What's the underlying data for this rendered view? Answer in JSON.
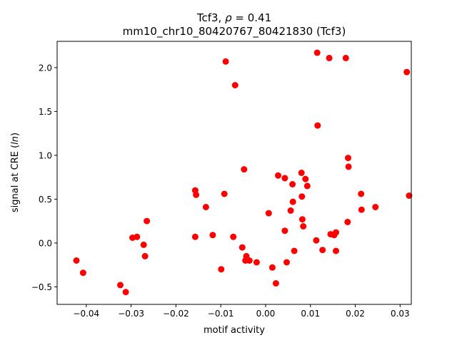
{
  "chart_data": {
    "type": "scatter",
    "title_line1_prefix": "Tcf3, ",
    "title_line1_rho": "ρ",
    "title_line1_suffix": " = 0.41",
    "title_line2": "mm10_chr10_80420767_80421830 (Tcf3)",
    "xlabel": "motif activity",
    "ylabel_prefix": "signal at CRE (",
    "ylabel_italic": "ln",
    "ylabel_suffix": ")",
    "xlim": [
      -0.0465,
      0.0325
    ],
    "ylim": [
      -0.7,
      2.3
    ],
    "x_ticks": [
      -0.04,
      -0.03,
      -0.02,
      -0.01,
      0.0,
      0.01,
      0.02,
      0.03
    ],
    "x_tick_labels": [
      "−0.04",
      "−0.03",
      "−0.02",
      "−0.01",
      "0.00",
      "0.01",
      "0.02",
      "0.03"
    ],
    "y_ticks": [
      -0.5,
      0.0,
      0.5,
      1.0,
      1.5,
      2.0
    ],
    "y_tick_labels": [
      "−0.5",
      "0.0",
      "0.5",
      "1.0",
      "1.5",
      "2.0"
    ],
    "grid": false,
    "marker_color": "#ff0000",
    "points": [
      {
        "x": -0.0422,
        "y": -0.2
      },
      {
        "x": -0.0407,
        "y": -0.34
      },
      {
        "x": -0.0324,
        "y": -0.48
      },
      {
        "x": -0.0312,
        "y": -0.56
      },
      {
        "x": -0.0297,
        "y": 0.06
      },
      {
        "x": -0.0287,
        "y": 0.07
      },
      {
        "x": -0.0272,
        "y": -0.02
      },
      {
        "x": -0.0269,
        "y": -0.15
      },
      {
        "x": -0.0265,
        "y": 0.25
      },
      {
        "x": -0.0157,
        "y": 0.6
      },
      {
        "x": -0.0155,
        "y": 0.55
      },
      {
        "x": -0.0157,
        "y": 0.07
      },
      {
        "x": -0.0133,
        "y": 0.41
      },
      {
        "x": -0.0118,
        "y": 0.09
      },
      {
        "x": -0.0099,
        "y": -0.3
      },
      {
        "x": -0.0092,
        "y": 0.56
      },
      {
        "x": -0.0089,
        "y": 2.07
      },
      {
        "x": -0.0068,
        "y": 1.8
      },
      {
        "x": -0.0072,
        "y": 0.07
      },
      {
        "x": -0.0052,
        "y": -0.05
      },
      {
        "x": -0.0048,
        "y": 0.84
      },
      {
        "x": -0.0045,
        "y": -0.2
      },
      {
        "x": -0.0043,
        "y": -0.15
      },
      {
        "x": -0.0036,
        "y": -0.2
      },
      {
        "x": -0.002,
        "y": -0.22
      },
      {
        "x": 0.0007,
        "y": 0.34
      },
      {
        "x": 0.0015,
        "y": -0.28
      },
      {
        "x": 0.0023,
        "y": -0.46
      },
      {
        "x": 0.0028,
        "y": 0.77
      },
      {
        "x": 0.0043,
        "y": 0.14
      },
      {
        "x": 0.0043,
        "y": 0.74
      },
      {
        "x": 0.0047,
        "y": -0.22
      },
      {
        "x": 0.0056,
        "y": 0.37
      },
      {
        "x": 0.006,
        "y": 0.67
      },
      {
        "x": 0.0061,
        "y": 0.47
      },
      {
        "x": 0.0064,
        "y": -0.09
      },
      {
        "x": 0.008,
        "y": 0.8
      },
      {
        "x": 0.0081,
        "y": 0.53
      },
      {
        "x": 0.0082,
        "y": 0.27
      },
      {
        "x": 0.0084,
        "y": 0.19
      },
      {
        "x": 0.0089,
        "y": 0.73
      },
      {
        "x": 0.0093,
        "y": 0.65
      },
      {
        "x": 0.0113,
        "y": 0.03
      },
      {
        "x": 0.0115,
        "y": 2.17
      },
      {
        "x": 0.0116,
        "y": 1.34
      },
      {
        "x": 0.0127,
        "y": -0.08
      },
      {
        "x": 0.0142,
        "y": 2.11
      },
      {
        "x": 0.0145,
        "y": 0.1
      },
      {
        "x": 0.0153,
        "y": 0.09
      },
      {
        "x": 0.0157,
        "y": 0.12
      },
      {
        "x": 0.0157,
        "y": -0.09
      },
      {
        "x": 0.0179,
        "y": 2.11
      },
      {
        "x": 0.0183,
        "y": 0.24
      },
      {
        "x": 0.0184,
        "y": 0.97
      },
      {
        "x": 0.0185,
        "y": 0.87
      },
      {
        "x": 0.0213,
        "y": 0.56
      },
      {
        "x": 0.0214,
        "y": 0.38
      },
      {
        "x": 0.0245,
        "y": 0.41
      },
      {
        "x": 0.0315,
        "y": 1.95
      },
      {
        "x": 0.032,
        "y": 0.54
      }
    ]
  }
}
